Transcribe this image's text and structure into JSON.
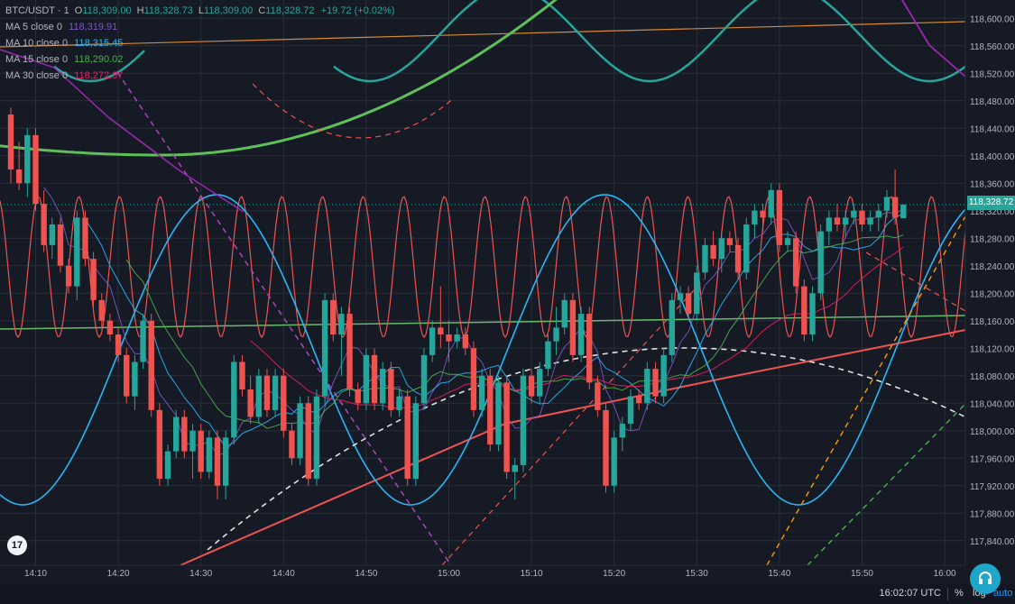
{
  "legend": {
    "symbol": "BTC/USDT · 1",
    "o_label": "O",
    "o_value": "118,309.00",
    "h_label": "H",
    "h_value": "118,328.73",
    "l_label": "L",
    "l_value": "118,309.00",
    "c_label": "C",
    "c_value": "118,328.72",
    "change": "+19.72 (+0.02%)",
    "ohlc_color": "#26a69a",
    "ma": [
      {
        "label": "MA 5 close 0",
        "value": "118,319.91",
        "color": "#7e57c2"
      },
      {
        "label": "MA 10 close 0",
        "value": "118,315.45",
        "color": "#29b6f6"
      },
      {
        "label": "MA 15 close 0",
        "value": "118,290.02",
        "color": "#4caf50"
      },
      {
        "label": "MA 30 close 0",
        "value": "118,272.67",
        "color": "#e91e63"
      }
    ]
  },
  "price_axis": {
    "ticks": [
      "118,600.00",
      "118,560.00",
      "118,520.00",
      "118,480.00",
      "118,440.00",
      "118,400.00",
      "118,360.00",
      "118,320.00",
      "118,280.00",
      "118,240.00",
      "118,200.00",
      "118,160.00",
      "118,120.00",
      "118,080.00",
      "118,040.00",
      "118,000.00",
      "117,960.00",
      "117,920.00",
      "117,880.00",
      "117,840.00"
    ],
    "current_price": "118,328.72"
  },
  "time_axis": {
    "ticks": [
      "14:10",
      "14:20",
      "14:30",
      "14:40",
      "14:50",
      "15:00",
      "15:10",
      "15:20",
      "15:30",
      "15:40",
      "15:50",
      "16:00"
    ]
  },
  "logo_text": "17",
  "bottom": {
    "clock": "16:02:07 UTC",
    "pct": "%",
    "log": "log",
    "auto": "auto"
  },
  "colors": {
    "up": "#26a69a",
    "down": "#ef5350",
    "background": "#161a25",
    "grid": "#2a2e39"
  },
  "chart_data": {
    "type": "candlestick",
    "x_unit": "minute",
    "x_start": "14:07",
    "ylim": [
      117820,
      118620
    ],
    "candles": [
      [
        118460,
        118470,
        118360,
        118380
      ],
      [
        118380,
        118420,
        118350,
        118360
      ],
      [
        118360,
        118440,
        118340,
        118430
      ],
      [
        118430,
        118440,
        118320,
        118330
      ],
      [
        118330,
        118350,
        118260,
        118270
      ],
      [
        118270,
        118310,
        118250,
        118300
      ],
      [
        118300,
        118310,
        118230,
        118240
      ],
      [
        118240,
        118250,
        118200,
        118210
      ],
      [
        118210,
        118320,
        118190,
        118310
      ],
      [
        118310,
        118320,
        118240,
        118250
      ],
      [
        118250,
        118260,
        118180,
        118190
      ],
      [
        118190,
        118200,
        118150,
        118160
      ],
      [
        118160,
        118170,
        118130,
        118140
      ],
      [
        118140,
        118150,
        118100,
        118110
      ],
      [
        118110,
        118120,
        118040,
        118050
      ],
      [
        118050,
        118110,
        118030,
        118100
      ],
      [
        118100,
        118170,
        118090,
        118160
      ],
      [
        118160,
        118170,
        118020,
        118030
      ],
      [
        118030,
        118040,
        117920,
        117930
      ],
      [
        117930,
        117980,
        117920,
        117970
      ],
      [
        117970,
        118030,
        117960,
        118020
      ],
      [
        118020,
        118030,
        117960,
        117970
      ],
      [
        117970,
        118010,
        117930,
        118000
      ],
      [
        118000,
        118010,
        117930,
        117940
      ],
      [
        117940,
        118000,
        117930,
        117990
      ],
      [
        117990,
        118000,
        117900,
        117920
      ],
      [
        117920,
        118000,
        117900,
        117990
      ],
      [
        117990,
        118110,
        117980,
        118100
      ],
      [
        118100,
        118110,
        118050,
        118060
      ],
      [
        118060,
        118080,
        118010,
        118020
      ],
      [
        118020,
        118090,
        118010,
        118080
      ],
      [
        118080,
        118090,
        118020,
        118030
      ],
      [
        118030,
        118090,
        118020,
        118080
      ],
      [
        118080,
        118090,
        117990,
        118000
      ],
      [
        118000,
        118010,
        117950,
        117960
      ],
      [
        117960,
        118050,
        117950,
        118040
      ],
      [
        118040,
        118050,
        117920,
        117930
      ],
      [
        117930,
        118060,
        117920,
        118050
      ],
      [
        118050,
        118200,
        118040,
        118190
      ],
      [
        118190,
        118200,
        118130,
        118140
      ],
      [
        118140,
        118180,
        118080,
        118170
      ],
      [
        118170,
        118180,
        118050,
        118060
      ],
      [
        118060,
        118070,
        118030,
        118040
      ],
      [
        118040,
        118120,
        118030,
        118110
      ],
      [
        118110,
        118120,
        118030,
        118040
      ],
      [
        118040,
        118100,
        118030,
        118090
      ],
      [
        118090,
        118100,
        118020,
        118030
      ],
      [
        118030,
        118060,
        118020,
        118050
      ],
      [
        118050,
        118060,
        117920,
        117930
      ],
      [
        117930,
        118050,
        117920,
        118040
      ],
      [
        118040,
        118120,
        118030,
        118110
      ],
      [
        118110,
        118160,
        118100,
        118150
      ],
      [
        118150,
        118210,
        118120,
        118140
      ],
      [
        118140,
        118160,
        118100,
        118130
      ],
      [
        118130,
        118150,
        118120,
        118140
      ],
      [
        118140,
        118150,
        118110,
        118120
      ],
      [
        118120,
        118130,
        118020,
        118030
      ],
      [
        118030,
        118090,
        118020,
        118080
      ],
      [
        118080,
        118090,
        117970,
        117980
      ],
      [
        117980,
        118080,
        117970,
        118070
      ],
      [
        118070,
        118080,
        117930,
        117940
      ],
      [
        117940,
        117960,
        117900,
        117950
      ],
      [
        117950,
        118090,
        117940,
        118080
      ],
      [
        118080,
        118090,
        118040,
        118050
      ],
      [
        118050,
        118100,
        118040,
        118090
      ],
      [
        118090,
        118140,
        118080,
        118130
      ],
      [
        118130,
        118180,
        118110,
        118150
      ],
      [
        118150,
        118200,
        118140,
        118190
      ],
      [
        118190,
        118200,
        118100,
        118110
      ],
      [
        118110,
        118180,
        118100,
        118170
      ],
      [
        118170,
        118180,
        118060,
        118070
      ],
      [
        118070,
        118080,
        118020,
        118030
      ],
      [
        118030,
        118040,
        117910,
        117920
      ],
      [
        117920,
        118000,
        117910,
        117990
      ],
      [
        117990,
        118020,
        117970,
        118010
      ],
      [
        118010,
        118060,
        118000,
        118050
      ],
      [
        118050,
        118060,
        118030,
        118040
      ],
      [
        118040,
        118100,
        118030,
        118090
      ],
      [
        118090,
        118100,
        118040,
        118050
      ],
      [
        118050,
        118120,
        118040,
        118110
      ],
      [
        118110,
        118200,
        118100,
        118190
      ],
      [
        118190,
        118210,
        118170,
        118200
      ],
      [
        118200,
        118210,
        118160,
        118170
      ],
      [
        118170,
        118240,
        118160,
        118230
      ],
      [
        118230,
        118280,
        118220,
        118270
      ],
      [
        118270,
        118290,
        118240,
        118250
      ],
      [
        118250,
        118290,
        118230,
        118280
      ],
      [
        118280,
        118290,
        118260,
        118270
      ],
      [
        118270,
        118280,
        118220,
        118230
      ],
      [
        118230,
        118310,
        118220,
        118300
      ],
      [
        118300,
        118330,
        118280,
        118320
      ],
      [
        118320,
        118330,
        118290,
        118310
      ],
      [
        118310,
        118360,
        118300,
        118350
      ],
      [
        118350,
        118360,
        118260,
        118270
      ],
      [
        118270,
        118290,
        118260,
        118280
      ],
      [
        118280,
        118290,
        118200,
        118210
      ],
      [
        118210,
        118220,
        118130,
        118140
      ],
      [
        118140,
        118210,
        118130,
        118200
      ],
      [
        118200,
        118300,
        118190,
        118290
      ],
      [
        118290,
        118320,
        118270,
        118310
      ],
      [
        118310,
        118330,
        118290,
        118300
      ],
      [
        118300,
        118320,
        118280,
        118310
      ],
      [
        118310,
        118330,
        118300,
        118320
      ],
      [
        118320,
        118330,
        118290,
        118300
      ],
      [
        118300,
        118320,
        118290,
        118310
      ],
      [
        118310,
        118330,
        118290,
        118320
      ],
      [
        118320,
        118350,
        118310,
        118340
      ],
      [
        118340,
        118380,
        118300,
        118310
      ],
      [
        118309,
        118329,
        118309,
        118329
      ]
    ]
  }
}
